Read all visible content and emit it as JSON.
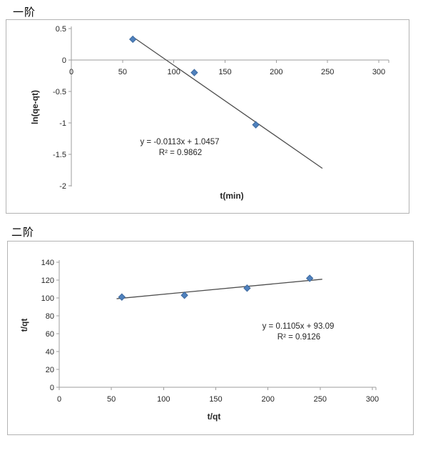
{
  "page": {
    "background": "#ffffff"
  },
  "colors": {
    "marker": "#4f81bd",
    "marker_edge": "#3e6aa0",
    "trendline": "#4d4d4d",
    "axis": "#9d9d9d",
    "text": "#262626",
    "title": "#000000",
    "chart_border": "#b3b3b3"
  },
  "sections": [
    {
      "title": "一阶"
    },
    {
      "title": "二阶"
    }
  ],
  "chart_data": [
    {
      "type": "scatter",
      "title": "一阶",
      "xlabel": "t(min)",
      "ylabel": "ln(qe-qt)",
      "xlim": [
        0,
        300
      ],
      "ylim": [
        -2,
        0.5
      ],
      "xticks": [
        0,
        50,
        100,
        150,
        200,
        250,
        300
      ],
      "yticks": [
        0.5,
        0,
        -0.5,
        -1,
        -1.5,
        -2
      ],
      "grid": false,
      "legend": false,
      "points": [
        [
          60,
          0.33
        ],
        [
          120,
          -0.2
        ],
        [
          180,
          -1.03
        ]
      ],
      "trendline": {
        "slope": -0.0113,
        "intercept": 1.0457,
        "x_range": [
          60,
          245
        ]
      },
      "equation": "y = -0.0113x + 1.0457",
      "r_squared": "R² = 0.9862"
    },
    {
      "type": "scatter",
      "title": "二阶",
      "xlabel": "t/qt",
      "ylabel": "t/qt",
      "xlim": [
        0,
        300
      ],
      "ylim": [
        0,
        140
      ],
      "xticks": [
        0,
        50,
        100,
        150,
        200,
        250,
        300
      ],
      "yticks": [
        140,
        120,
        100,
        80,
        60,
        40,
        20,
        0
      ],
      "grid": false,
      "legend": false,
      "points": [
        [
          60,
          101
        ],
        [
          120,
          103
        ],
        [
          180,
          111
        ],
        [
          240,
          122
        ]
      ],
      "trendline": {
        "slope": 0.1105,
        "intercept": 93.09,
        "x_range": [
          55,
          252
        ]
      },
      "equation": "y = 0.1105x + 93.09",
      "r_squared": "R² = 0.9126"
    }
  ]
}
